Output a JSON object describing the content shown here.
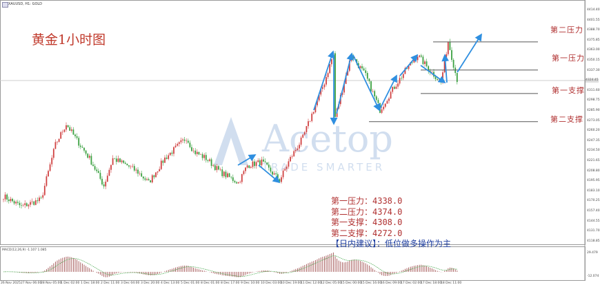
{
  "header": {
    "symbol": "XAUUSD, H1:  GOLD"
  },
  "title": "黄金1小时图",
  "watermark": {
    "brand": "Acetop",
    "tagline": "TRADE SMARTER"
  },
  "levels": [
    {
      "label": "第二压力",
      "price": 4374.0
    },
    {
      "label": "第一压力",
      "price": 4338.0
    },
    {
      "label": "第一支撑",
      "price": 4308.0
    },
    {
      "label": "第二支撑",
      "price": 4272.0
    }
  ],
  "info": {
    "lines": [
      "第一压力：4338.0",
      "第二压力：4374.0",
      "第一支撑：4308.0",
      "第二支撑：4272.0"
    ],
    "advice": "【日内建议】：低位做多操作为主"
  },
  "colors": {
    "bull": "#d04040",
    "bear": "#3aa040",
    "arrow": "#2f8fe0",
    "level_line": "#555555",
    "text": "#b03030",
    "advice": "#1f3fa0"
  },
  "chart_data": {
    "type": "candlestick",
    "symbol": "XAUUSD",
    "timeframe": "H1",
    "price_axis_ticks": [
      "4414.40",
      "4401.55",
      "4388.70",
      "4375.85",
      "4363.00",
      "4350.15",
      "4337.30",
      "4311.60",
      "4298.75",
      "4285.90",
      "4273.05",
      "4260.20",
      "4247.35",
      "4234.50",
      "4221.65",
      "4208.80",
      "4195.95",
      "4183.10",
      "4170.25",
      "4157.40",
      "4144.55",
      "4131.70",
      "4118.85"
    ],
    "current_price_label": "4324.45",
    "ylim": [
      4112,
      4427
    ],
    "time_axis_ticks": [
      "26 Nov 2025",
      "27 Nov 06:00",
      "28 Nov 05:00",
      "1 Dec 02:00",
      "1 Dec 18:00",
      "2 Dec 11:00",
      "3 Dec 04:00",
      "3 Dec 20:00",
      "4 Dec 13:00",
      "5 Dec 01:00",
      "8 Dec 01:00",
      "8 Dec 17:00",
      "9 Dec 10:00",
      "10 Dec 03:00",
      "10 Dec 19:00",
      "11 Dec 12:00",
      "12 Dec 05:00",
      "15 Dec 00:00",
      "15 Dec 16:00",
      "16 Dec 09:00",
      "17 Dec 02:00",
      "17 Dec 18:00",
      "18 Dec 11:00"
    ],
    "approx_close_path": [
      [
        0,
        4176.7
      ],
      [
        10,
        4163.5
      ],
      [
        21,
        4172.3
      ],
      [
        29,
        4242.7
      ],
      [
        35,
        4269
      ],
      [
        40,
        4251.5
      ],
      [
        48,
        4225
      ],
      [
        56,
        4190
      ],
      [
        61,
        4225
      ],
      [
        69,
        4216
      ],
      [
        75,
        4207.5
      ],
      [
        81,
        4194
      ],
      [
        90,
        4225
      ],
      [
        102,
        4251.5
      ],
      [
        106,
        4234
      ],
      [
        113,
        4225
      ],
      [
        121,
        4207.5
      ],
      [
        131,
        4194
      ],
      [
        136,
        4216
      ],
      [
        144,
        4220.5
      ],
      [
        154,
        4197
      ],
      [
        160,
        4225
      ],
      [
        167,
        4251.5
      ],
      [
        173,
        4287
      ],
      [
        179,
        4322
      ],
      [
        184,
        4359
      ],
      [
        185,
        4278
      ],
      [
        194,
        4357
      ],
      [
        202,
        4331
      ],
      [
        210,
        4287
      ],
      [
        217,
        4313
      ],
      [
        225,
        4340
      ],
      [
        231,
        4357
      ],
      [
        237,
        4340
      ],
      [
        244,
        4322
      ],
      [
        248,
        4375
      ],
      [
        252,
        4335
      ],
      [
        253,
        4326
      ]
    ],
    "macd": {
      "label": "MACD(12,26,9) -1.107 1.085",
      "ylim_labels": [
        "29.479",
        "-12.074"
      ]
    }
  }
}
